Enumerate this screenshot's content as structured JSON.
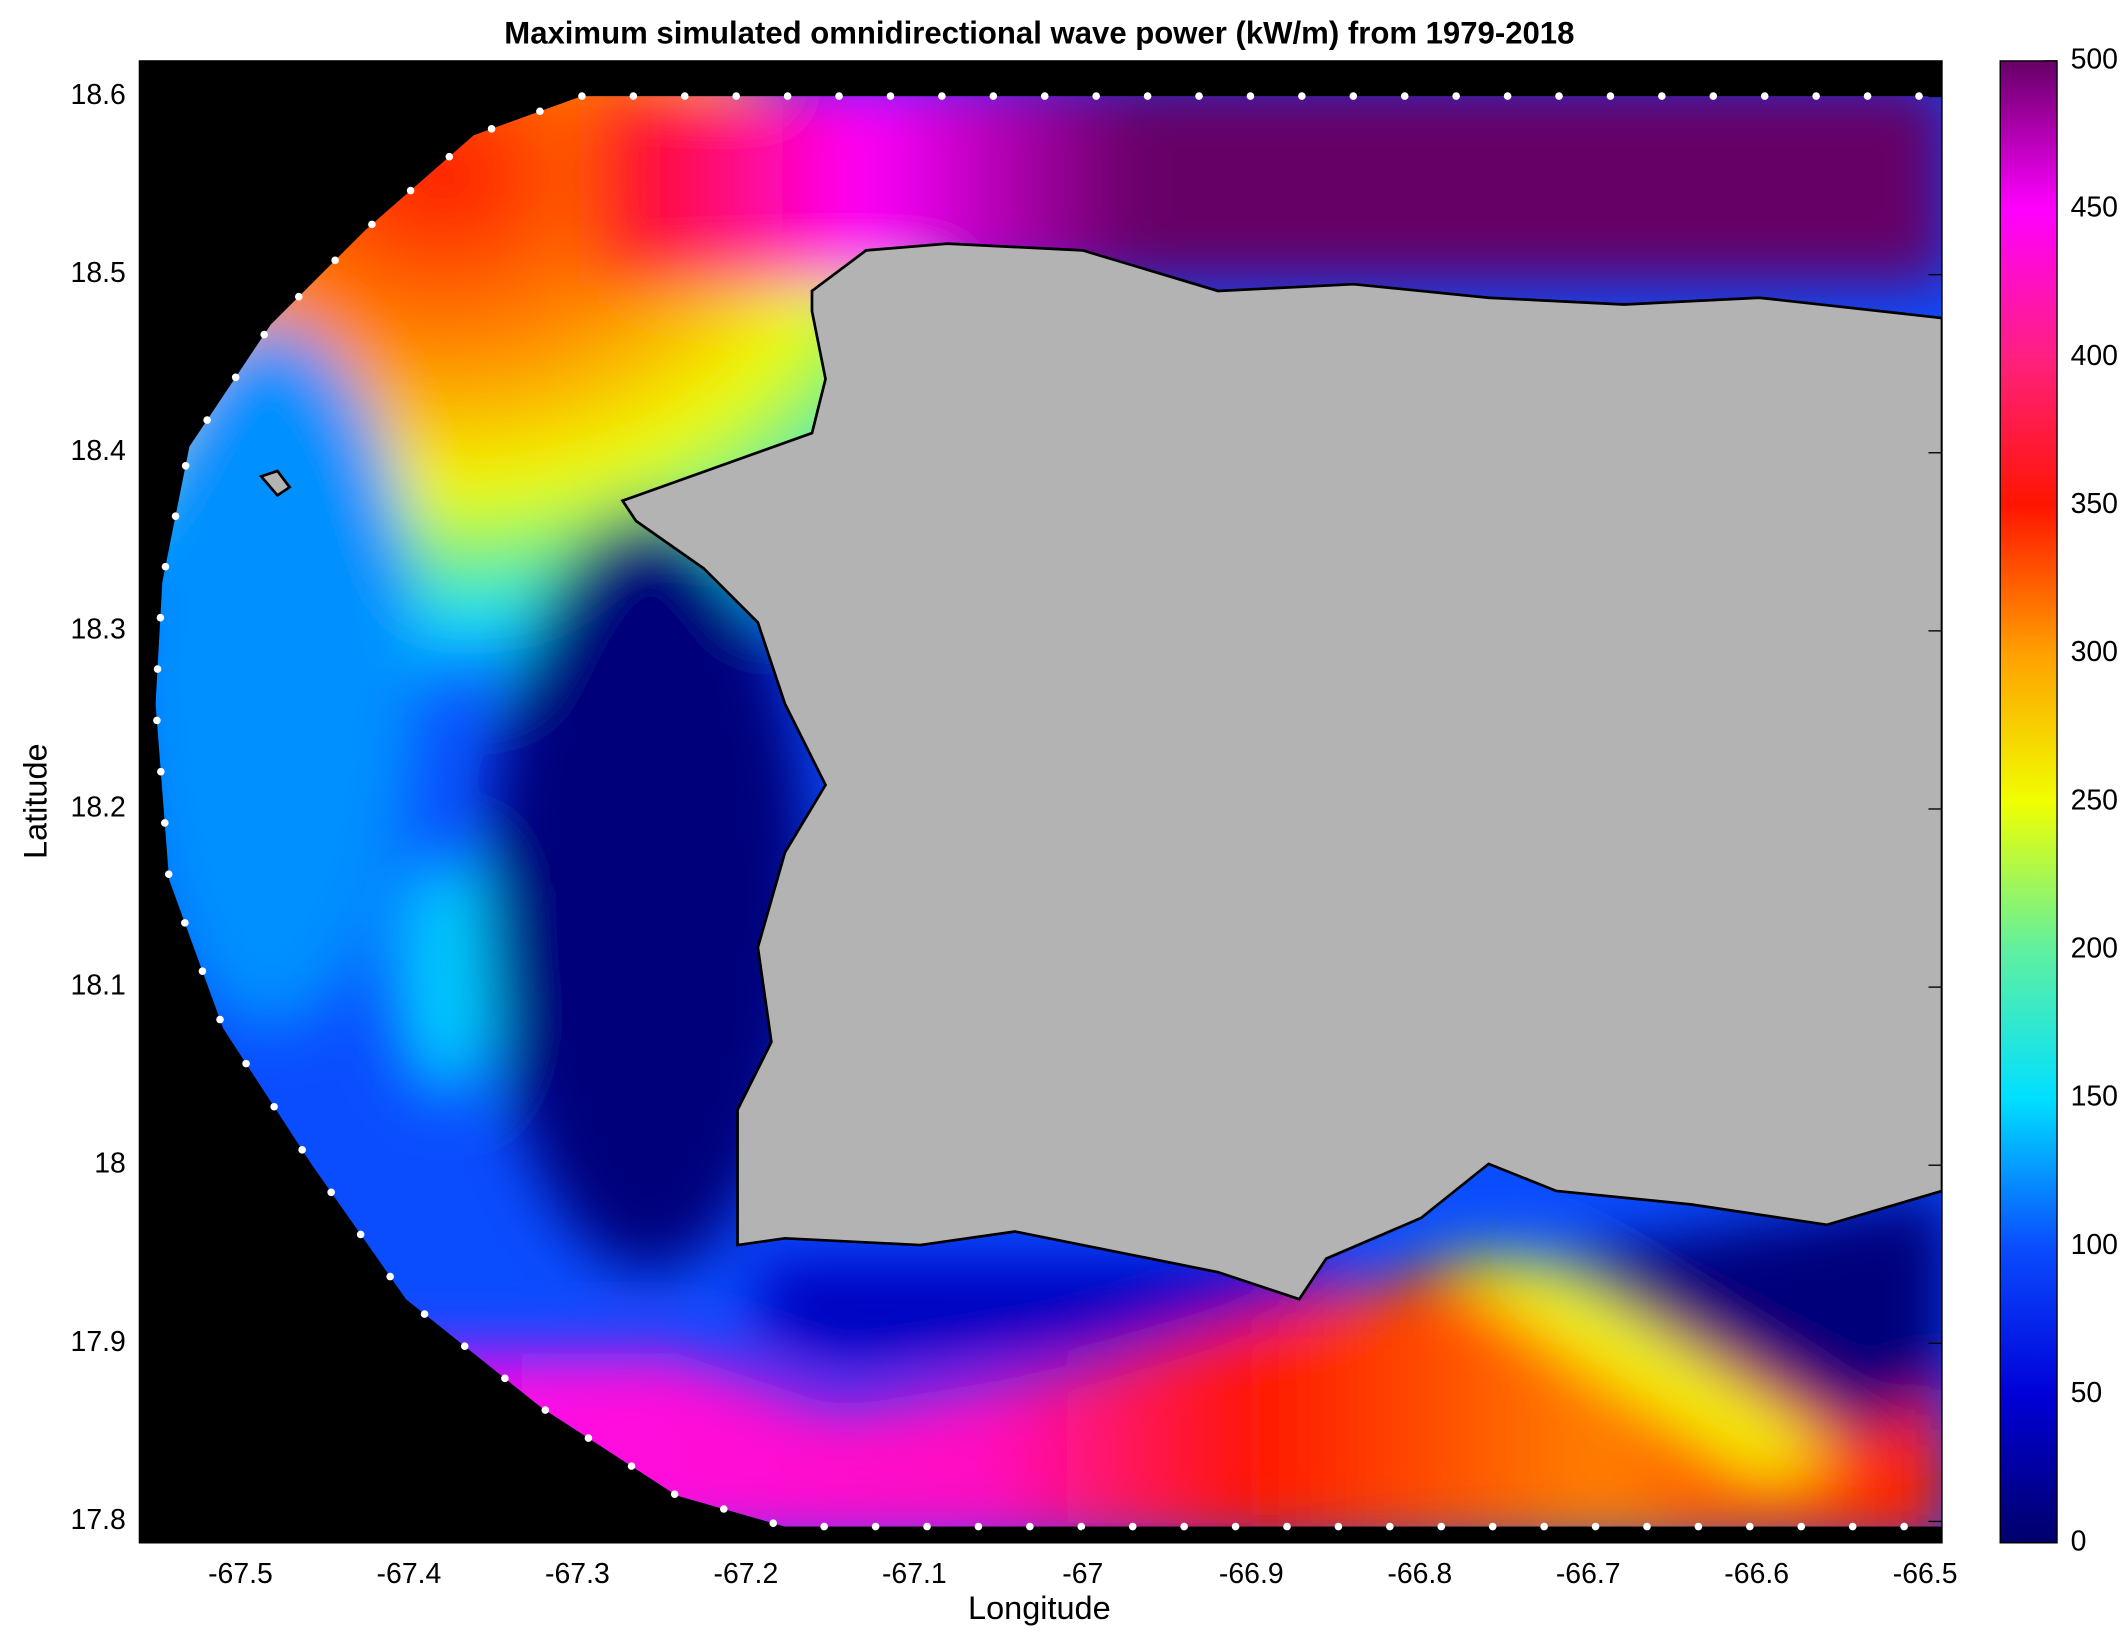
{
  "chart_data": {
    "type": "contour-map",
    "title": "Maximum simulated omnidirectional wave power (kW/m) from 1979-2018",
    "x_label": "Longitude",
    "y_label": "Latitude",
    "xlim": [
      -67.56,
      -66.49
    ],
    "ylim": [
      17.788,
      18.62
    ],
    "xticks": [
      -67.5,
      -67.4,
      -67.3,
      -67.2,
      -67.1,
      -67,
      -66.9,
      -66.8,
      -66.7,
      -66.6,
      -66.5
    ],
    "yticks": [
      17.8,
      17.9,
      18,
      18.1,
      18.2,
      18.3,
      18.4,
      18.5,
      18.6
    ],
    "colorbar": {
      "lim": [
        0,
        500
      ],
      "ticks": [
        0,
        50,
        100,
        150,
        200,
        250,
        300,
        350,
        400,
        450,
        500
      ],
      "colormap": [
        "#00006a",
        "#0000d8",
        "#0a4dff",
        "#00e0ff",
        "#60f0a0",
        "#f0ff00",
        "#ffa000",
        "#ff1500",
        "#ff2080",
        "#ff00ff",
        "#660066"
      ]
    },
    "land_color": "#b3b3b3",
    "outside_color": "#000000"
  }
}
